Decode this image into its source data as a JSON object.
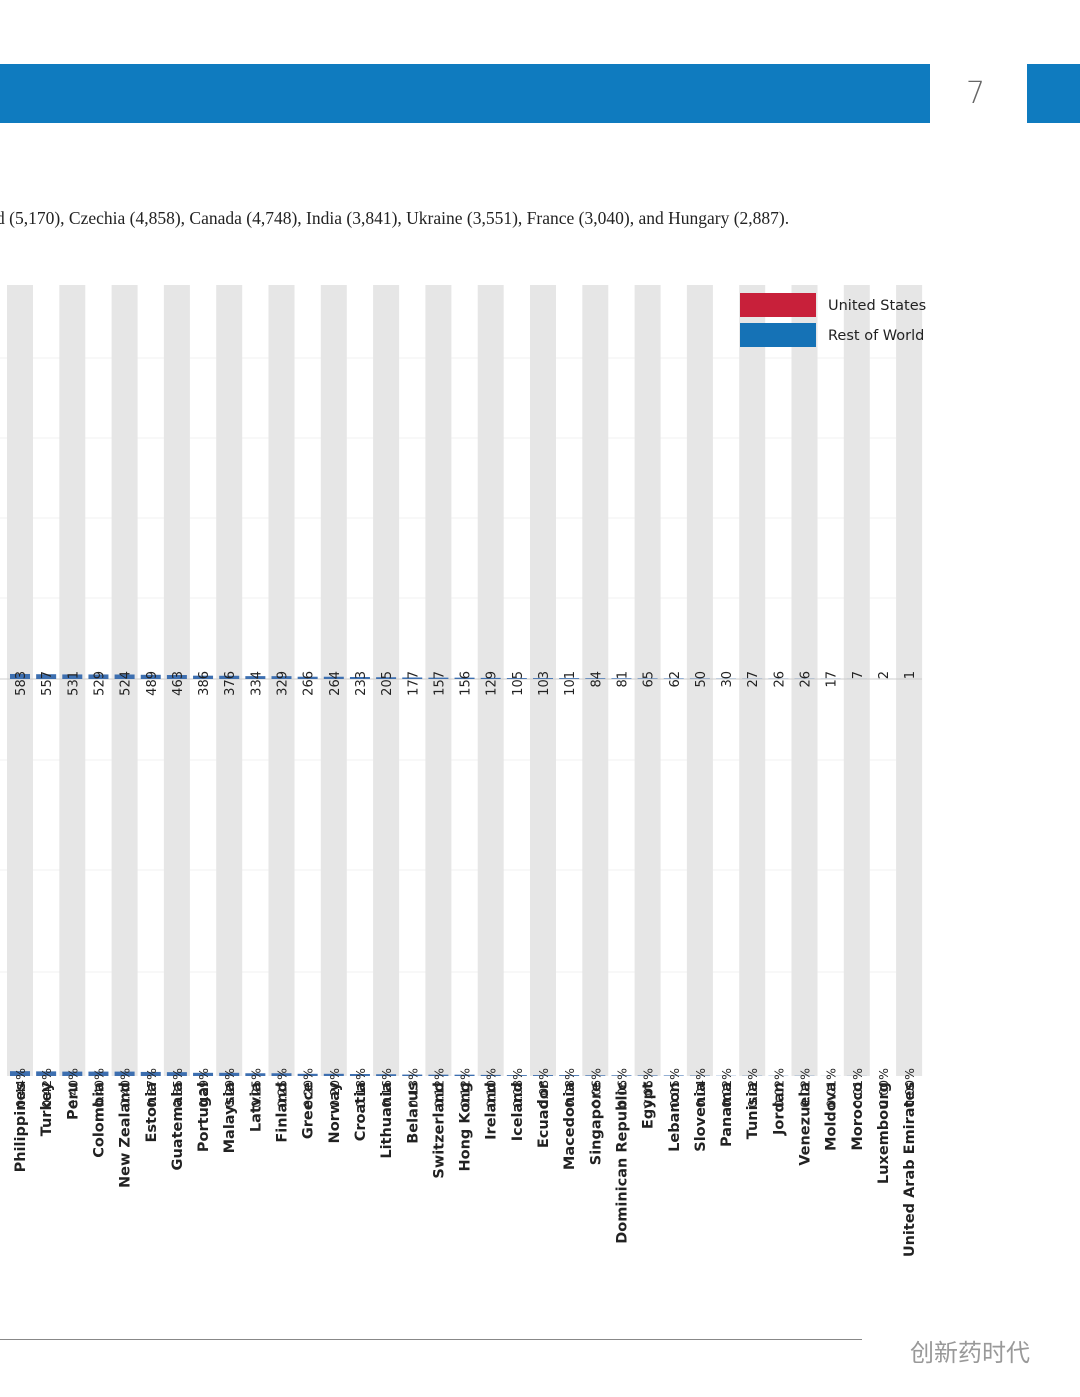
{
  "page_number": "7",
  "body_text": "d (5,170), Czechia (4,858), Canada (4,748), India (3,841), Ukraine (3,551), France (3,040), and Hungary (2,887).",
  "watermark": "创新药时代",
  "chart_data": [
    {
      "type": "bar",
      "categories": [
        "Philippines",
        "Turkey",
        "Peru",
        "Colombia",
        "New Zealand",
        "Estonia",
        "Guatemala",
        "Portugal",
        "Malaysia",
        "Latvia",
        "Finland",
        "Greece",
        "Norway",
        "Croatia",
        "Lithuania",
        "Belarus",
        "Switzerland",
        "Hong Kong",
        "Ireland",
        "Iceland",
        "Ecuador",
        "Macedonia",
        "Singapore",
        "Dominican Republic",
        "Egypt",
        "Lebanon",
        "Slovenia",
        "Panama",
        "Tunisia",
        "Jordan",
        "Venezuela",
        "Moldova",
        "Morocco",
        "Luxembourg",
        "United Arab Emirates"
      ],
      "values": [
        583,
        557,
        531,
        529,
        524,
        489,
        463,
        386,
        376,
        334,
        329,
        266,
        264,
        233,
        205,
        177,
        157,
        156,
        129,
        105,
        103,
        101,
        84,
        81,
        65,
        62,
        50,
        30,
        27,
        26,
        26,
        17,
        7,
        2,
        1
      ],
      "color": "#3d6fb0",
      "legend": [
        {
          "name": "United States",
          "color": "#c8203a"
        },
        {
          "name": "Rest of World",
          "color": "#1572b6"
        }
      ]
    },
    {
      "type": "bar",
      "values": [
        0.44,
        0.42,
        0.4,
        0.4,
        0.4,
        0.37,
        0.35,
        0.29,
        0.29,
        0.25,
        0.25,
        0.2,
        0.2,
        0.18,
        0.16,
        0.13,
        0.12,
        0.12,
        0.1,
        0.08,
        0.08,
        0.08,
        0.06,
        0.06,
        0.05,
        0.05,
        0.04,
        0.02,
        0.02,
        0.02,
        0.02,
        0.01,
        0.01,
        0.0,
        0.0
      ],
      "value_labels": [
        "0.44%",
        "0.42%",
        "0.40%",
        "0.40%",
        "0.40%",
        "0.37%",
        "0.35%",
        "0.29%",
        "0.29%",
        "0.25%",
        "0.25%",
        "0.20%",
        "0.20%",
        "0.18%",
        "0.16%",
        "0.13%",
        "0.12%",
        "0.12%",
        "0.10%",
        "0.08%",
        "0.08%",
        "0.08%",
        "0.06%",
        "0.06%",
        "0.05%",
        "0.05%",
        "0.04%",
        "0.02%",
        "0.02%",
        "0.02%",
        "0.02%",
        "0.01%",
        "0.01%",
        "0.00%",
        "0.00%"
      ],
      "color": "#3d6fb0"
    }
  ]
}
